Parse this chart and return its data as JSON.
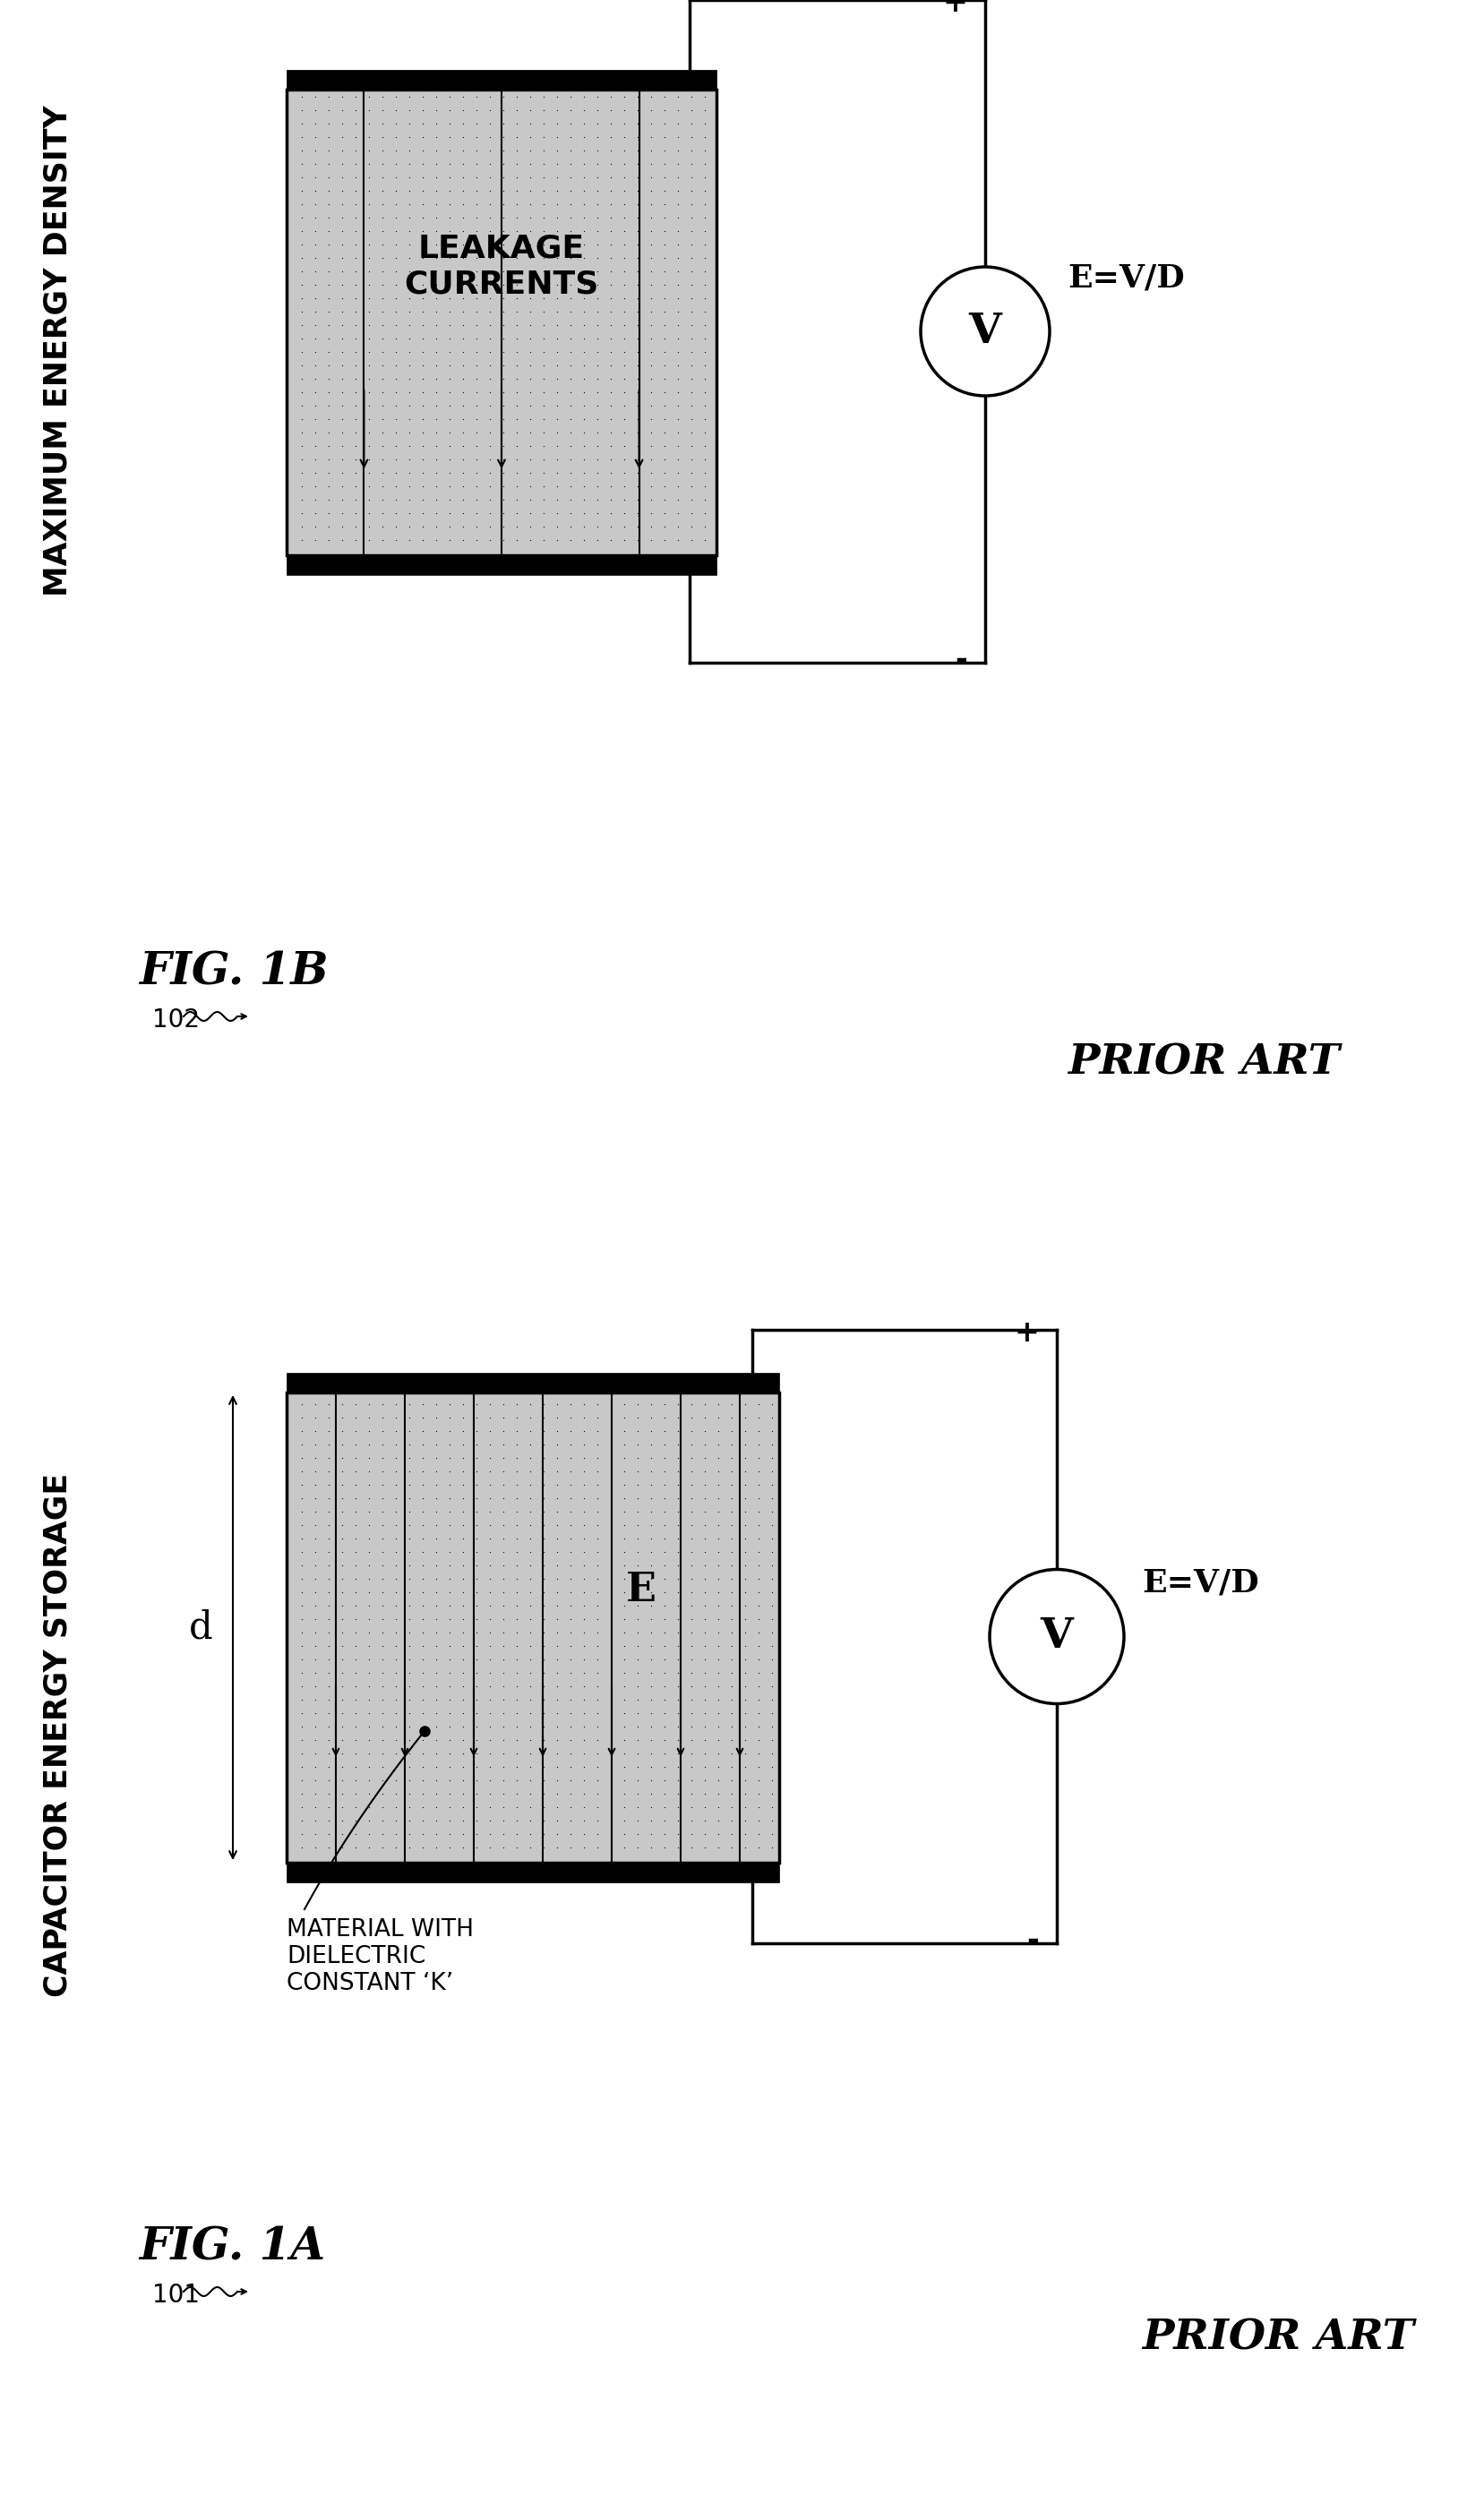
{
  "fig_a_label": "FIG. 1A",
  "fig_b_label": "FIG. 1B",
  "fig_a_ref": "101",
  "fig_b_ref": "102",
  "fig_a_title": "CAPACITOR ENERGY STORAGE",
  "fig_b_title": "MAXIMUM ENERGY DENSITY",
  "prior_art": "PRIOR ART",
  "e_eq": "E=V/D",
  "dielectric_label": "MATERIAL WITH\nDIELECTRIC\nCONSTANT ‘K’",
  "leakage_label": "LEAKAGE\nCURRENTS",
  "d_label": "d",
  "e_label": "E",
  "v_label": "V",
  "plus_label": "+",
  "minus_label": "-",
  "bg_color": "#ffffff",
  "fill_color": "#c8c8c8",
  "line_color": "#000000"
}
